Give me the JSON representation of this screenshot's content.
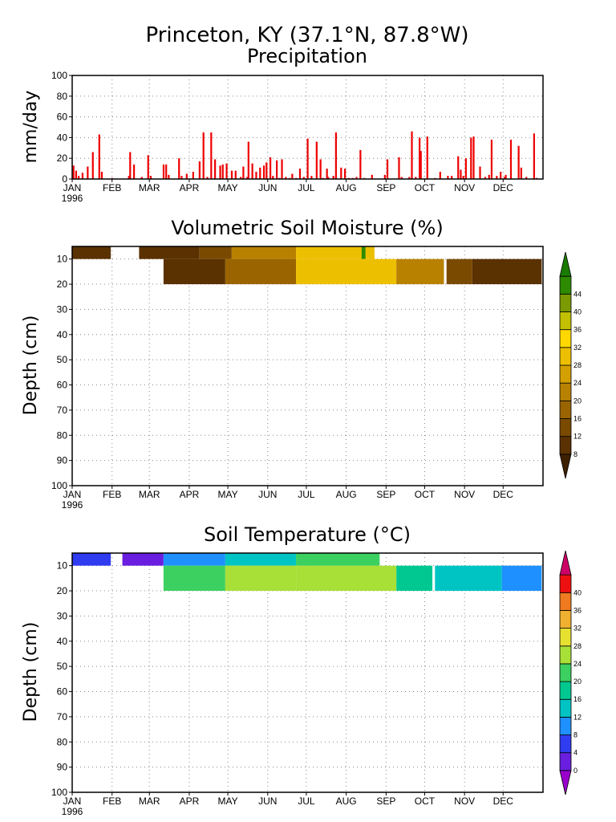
{
  "header": {
    "station": "Princeton, KY  (37.1°N, 87.8°W)",
    "subtitle": "Precipitation"
  },
  "chart_data": [
    {
      "type": "bar",
      "title": "Precipitation",
      "ylabel": "mm/day",
      "ylim": [
        0,
        100
      ],
      "yticks": [
        "0",
        "20",
        "40",
        "60",
        "80",
        "100"
      ],
      "xticks": [
        "JAN",
        "FEB",
        "MAR",
        "APR",
        "MAY",
        "JUN",
        "JUL",
        "AUG",
        "SEP",
        "OCT",
        "NOV",
        "DEC"
      ],
      "year": "1996",
      "grid": true,
      "color": "#ee0000",
      "x": [
        2,
        4,
        6,
        9,
        13,
        17,
        22,
        24,
        32,
        45,
        46,
        49,
        55,
        60,
        62,
        72,
        74,
        76,
        84,
        86,
        90,
        95,
        100,
        103,
        106,
        109,
        112,
        116,
        118,
        121,
        125,
        128,
        132,
        134,
        137,
        138,
        141,
        144,
        147,
        150,
        152,
        155,
        157,
        160,
        162,
        164,
        167,
        170,
        172,
        175,
        178,
        181,
        184,
        187,
        191,
        194,
        196,
        199,
        200,
        204,
        206,
        210,
        213,
        216,
        219,
        222,
        225,
        228,
        234,
        244,
        246,
        255,
        257,
        263,
        265,
        268,
        271,
        272,
        277,
        283,
        287,
        293,
        296,
        301,
        303,
        305,
        307,
        311,
        313,
        318,
        322,
        325,
        327,
        331,
        334,
        337,
        338,
        342,
        348,
        350,
        354,
        360,
        362
      ],
      "values": [
        13,
        8,
        3,
        6,
        12,
        26,
        43,
        7,
        1,
        3,
        26,
        14,
        2,
        23,
        3,
        14,
        14,
        4,
        20,
        3,
        5,
        7,
        17,
        45,
        2,
        45,
        19,
        13,
        14,
        15,
        8,
        8,
        2,
        12,
        2,
        36,
        15,
        7,
        11,
        13,
        16,
        21,
        3,
        18,
        1,
        19,
        2,
        1,
        5,
        1,
        10,
        2,
        39,
        3,
        36,
        19,
        1,
        10,
        2,
        3,
        45,
        11,
        10,
        1,
        1,
        2,
        28,
        1,
        4,
        4,
        19,
        21,
        2,
        2,
        46,
        2,
        40,
        27,
        41,
        1,
        7,
        3,
        3,
        22,
        9,
        3,
        20,
        40,
        41,
        12,
        2,
        4,
        38,
        3,
        7,
        2,
        4,
        38,
        32,
        11,
        2,
        44,
        1
      ],
      "note": "x = day of year 1996"
    },
    {
      "type": "heatmap",
      "title": "Volumetric Soil Moisture (%)",
      "ylabel": "Depth (cm)",
      "ylim": [
        100,
        5
      ],
      "yticks": [
        "10",
        "20",
        "30",
        "40",
        "50",
        "60",
        "70",
        "80",
        "90",
        "100"
      ],
      "xticks": [
        "JAN",
        "FEB",
        "MAR",
        "APR",
        "MAY",
        "JUN",
        "JUL",
        "AUG",
        "SEP",
        "OCT",
        "NOV",
        "DEC"
      ],
      "year": "1996",
      "grid": true,
      "colorbar": {
        "labels": [
          "8",
          "12",
          "16",
          "20",
          "24",
          "28",
          "32",
          "36",
          "40",
          "44"
        ],
        "colors": [
          "#3d2000",
          "#5a3100",
          "#7a4a00",
          "#9a6500",
          "#b88200",
          "#d4a000",
          "#ecc000",
          "#ffd800",
          "#c2c000",
          "#7a9a00",
          "#2e8a00",
          "#1a7a00"
        ]
      },
      "bands": [
        {
          "layer": "0-10",
          "day_from": 1,
          "day_to": 31,
          "value": 8
        },
        {
          "layer": "0-10",
          "day_from": 53,
          "day_to": 100,
          "value": 10
        },
        {
          "layer": "0-10",
          "day_from": 100,
          "day_to": 125,
          "value": 13
        },
        {
          "layer": "0-10",
          "day_from": 125,
          "day_to": 175,
          "value": 22
        },
        {
          "layer": "0-10",
          "day_from": 175,
          "day_to": 236,
          "value": 30
        },
        {
          "layer": "0-10",
          "day_from": 226,
          "day_to": 229,
          "value": 44
        },
        {
          "layer": "10-20",
          "day_from": 72,
          "day_to": 120,
          "value": 9
        },
        {
          "layer": "10-20",
          "day_from": 120,
          "day_to": 175,
          "value": 19
        },
        {
          "layer": "10-20",
          "day_from": 175,
          "day_to": 253,
          "value": 30
        },
        {
          "layer": "10-20",
          "day_from": 253,
          "day_to": 290,
          "value": 22
        },
        {
          "layer": "10-20",
          "day_from": 292,
          "day_to": 312,
          "value": 12
        },
        {
          "layer": "10-20",
          "day_from": 312,
          "day_to": 366,
          "value": 8
        }
      ]
    },
    {
      "type": "heatmap",
      "title": "Soil Temperature (°C)",
      "ylabel": "Depth (cm)",
      "ylim": [
        100,
        5
      ],
      "yticks": [
        "10",
        "20",
        "30",
        "40",
        "50",
        "60",
        "70",
        "80",
        "90",
        "100"
      ],
      "xticks": [
        "JAN",
        "FEB",
        "MAR",
        "APR",
        "MAY",
        "JUN",
        "JUL",
        "AUG",
        "SEP",
        "OCT",
        "NOV",
        "DEC"
      ],
      "year": "1996",
      "grid": true,
      "colorbar": {
        "labels": [
          "0",
          "4",
          "8",
          "12",
          "16",
          "20",
          "24",
          "28",
          "32",
          "36",
          "40"
        ],
        "colors": [
          "#9900cc",
          "#6a1ee0",
          "#2f3cf0",
          "#1e90ff",
          "#00c4c4",
          "#00c890",
          "#3cd060",
          "#a8e038",
          "#e6e030",
          "#f0b030",
          "#f07a20",
          "#ee1010",
          "#cc0066"
        ]
      },
      "bands": [
        {
          "layer": "0-10",
          "day_from": 1,
          "day_to": 31,
          "value": 4
        },
        {
          "layer": "0-10",
          "day_from": 40,
          "day_to": 72,
          "value": 3
        },
        {
          "layer": "0-10",
          "day_from": 72,
          "day_to": 120,
          "value": 8
        },
        {
          "layer": "0-10",
          "day_from": 120,
          "day_to": 175,
          "value": 14
        },
        {
          "layer": "0-10",
          "day_from": 175,
          "day_to": 240,
          "value": 23
        },
        {
          "layer": "10-20",
          "day_from": 72,
          "day_to": 120,
          "value": 20
        },
        {
          "layer": "10-20",
          "day_from": 120,
          "day_to": 175,
          "value": 26
        },
        {
          "layer": "10-20",
          "day_from": 175,
          "day_to": 253,
          "value": 24
        },
        {
          "layer": "10-20",
          "day_from": 253,
          "day_to": 281,
          "value": 18
        },
        {
          "layer": "10-20",
          "day_from": 283,
          "day_to": 335,
          "value": 12
        },
        {
          "layer": "10-20",
          "day_from": 335,
          "day_to": 366,
          "value": 8
        }
      ]
    }
  ]
}
